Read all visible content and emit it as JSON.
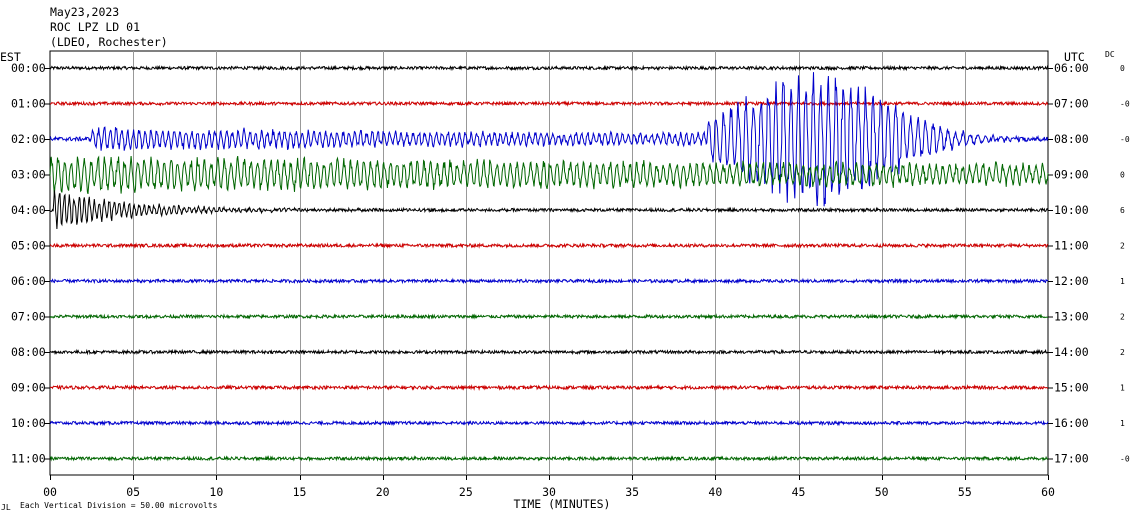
{
  "header": {
    "line1": "May23,2023",
    "line2": "ROC LPZ LD 01",
    "line3": "(LDEO, Rochester)"
  },
  "left_axis_label": "EST",
  "right_axis_label": "UTC",
  "dc_label": "DC",
  "footer": {
    "scale_note": "Each Vertical Division =   50.00 microvolts",
    "corner_mark": "JL"
  },
  "chart_data": {
    "type": "line",
    "title": "",
    "xlabel": "TIME (MINUTES)",
    "ylabel": "",
    "xlim": [
      0,
      60
    ],
    "x_ticks": [
      "00",
      "05",
      "10",
      "15",
      "20",
      "25",
      "30",
      "35",
      "40",
      "45",
      "50",
      "55",
      "60"
    ],
    "grid": true,
    "trace_colors": [
      "#000000",
      "#cc0000",
      "#0000cc",
      "#006600"
    ],
    "rows": [
      {
        "est": "00:00",
        "utc": "06:00",
        "dc": "0",
        "color": "#000000",
        "noise": 1.5,
        "events": []
      },
      {
        "est": "01:00",
        "utc": "07:00",
        "dc": "-0",
        "color": "#cc0000",
        "noise": 1.5,
        "events": []
      },
      {
        "est": "02:00",
        "utc": "08:00",
        "dc": "-0",
        "color": "#0000cc",
        "noise": 2.0,
        "events": [
          {
            "start": 2.5,
            "end": 40,
            "amp": 12,
            "period": 0.35,
            "decay": 0.02
          },
          {
            "start": 39.5,
            "end": 60,
            "amp": 70,
            "period": 0.45,
            "decay": 0.04
          }
        ]
      },
      {
        "est": "03:00",
        "utc": "09:00",
        "dc": "0",
        "color": "#006600",
        "noise": 2.0,
        "events": [
          {
            "start": 0,
            "end": 60,
            "amp": 20,
            "period": 0.4,
            "decay": 0.01
          }
        ]
      },
      {
        "est": "04:00",
        "utc": "10:00",
        "dc": "6",
        "color": "#000000",
        "noise": 1.5,
        "events": [
          {
            "start": 0.2,
            "end": 27,
            "amp": 22,
            "period": 0.3,
            "decay": 0.22
          }
        ]
      },
      {
        "est": "05:00",
        "utc": "11:00",
        "dc": "2",
        "color": "#cc0000",
        "noise": 1.6,
        "events": []
      },
      {
        "est": "06:00",
        "utc": "12:00",
        "dc": "1",
        "color": "#0000cc",
        "noise": 1.5,
        "events": []
      },
      {
        "est": "07:00",
        "utc": "13:00",
        "dc": "2",
        "color": "#006600",
        "noise": 1.5,
        "events": []
      },
      {
        "est": "08:00",
        "utc": "14:00",
        "dc": "2",
        "color": "#000000",
        "noise": 1.5,
        "events": []
      },
      {
        "est": "09:00",
        "utc": "15:00",
        "dc": "1",
        "color": "#cc0000",
        "noise": 1.6,
        "events": []
      },
      {
        "est": "10:00",
        "utc": "16:00",
        "dc": "1",
        "color": "#0000cc",
        "noise": 1.5,
        "events": []
      },
      {
        "est": "11:00",
        "utc": "17:00",
        "dc": "-0",
        "color": "#006600",
        "noise": 1.5,
        "events": []
      }
    ]
  }
}
